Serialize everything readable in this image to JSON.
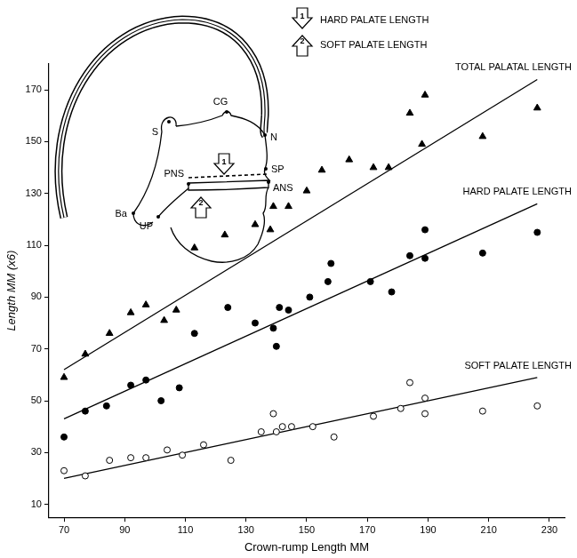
{
  "chart_data": {
    "type": "scatter",
    "x_label": "Crown-rump Length MM",
    "y_label": "Length MM (x6)",
    "xlim": [
      65,
      235
    ],
    "xticks": [
      70,
      90,
      110,
      130,
      150,
      170,
      190,
      210,
      230
    ],
    "ylim": [
      5,
      180
    ],
    "yticks": [
      10,
      30,
      50,
      70,
      90,
      110,
      130,
      150,
      170
    ],
    "grid": false,
    "series": [
      {
        "name": "TOTAL PALATAL LENGTH",
        "color": "#000000",
        "marker": "triangle",
        "x": [
          70,
          77,
          85,
          92,
          97,
          103,
          107,
          113,
          123,
          133,
          138,
          139,
          144,
          150,
          155,
          164,
          172,
          177,
          184,
          188,
          189,
          208,
          226
        ],
        "values": [
          59,
          68,
          76,
          84,
          87,
          81,
          85,
          109,
          114,
          118,
          116,
          125,
          125,
          131,
          139,
          143,
          140,
          140,
          161,
          149,
          168,
          152,
          163
        ],
        "fit_x": [
          70,
          226
        ],
        "fit_values": [
          62,
          174
        ]
      },
      {
        "name": "HARD PALATE LENGTH",
        "color": "#000000",
        "marker": "circle",
        "x": [
          70,
          77,
          84,
          92,
          97,
          102,
          108,
          113,
          124,
          133,
          139,
          140,
          141,
          144,
          151,
          157,
          158,
          171,
          178,
          184,
          189,
          189,
          208,
          226
        ],
        "values": [
          36,
          46,
          48,
          56,
          58,
          50,
          55,
          76,
          86,
          80,
          78,
          71,
          86,
          85,
          90,
          96,
          103,
          96,
          92,
          106,
          105,
          116,
          107,
          115
        ],
        "fit_x": [
          70,
          226
        ],
        "fit_values": [
          43,
          126
        ]
      },
      {
        "name": "SOFT PALATE LENGTH",
        "color": "#000000",
        "marker": "open_circle",
        "x": [
          70,
          77,
          85,
          92,
          97,
          104,
          109,
          116,
          125,
          135,
          139,
          140,
          142,
          145,
          152,
          159,
          172,
          181,
          184,
          189,
          189,
          208,
          226
        ],
        "values": [
          23,
          21,
          27,
          28,
          28,
          31,
          29,
          33,
          27,
          38,
          45,
          38,
          40,
          40,
          40,
          36,
          44,
          47,
          57,
          51,
          45,
          46,
          48
        ],
        "fit_x": [
          70,
          226
        ],
        "fit_values": [
          20,
          59
        ]
      }
    ]
  },
  "inset": {
    "labels": [
      "S",
      "CG",
      "N",
      "SP",
      "ANS",
      "PNS",
      "Ba",
      "UP"
    ],
    "key": [
      {
        "number": "1",
        "text": "HARD PALATE LENGTH"
      },
      {
        "number": "2",
        "text": "SOFT PALATE LENGTH"
      }
    ]
  }
}
